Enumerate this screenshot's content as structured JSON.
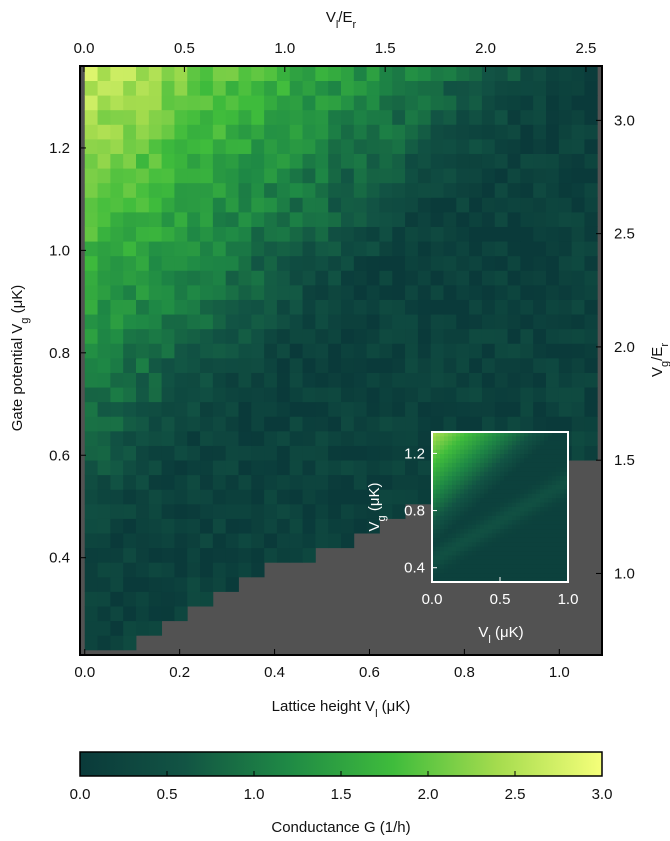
{
  "chart_data": {
    "type": "heatmap",
    "axes": {
      "bottom": {
        "label": "Lattice height V",
        "label_sub": "l",
        "label_unit": " (μK)",
        "range": [
          -0.01,
          1.09
        ],
        "ticks": [
          0.0,
          0.2,
          0.4,
          0.6,
          0.8,
          1.0
        ],
        "tick_labels": [
          "0.0",
          "0.2",
          "0.4",
          "0.6",
          "0.8",
          "1.0"
        ]
      },
      "left": {
        "label": "Gate potential V",
        "label_sub": "g",
        "label_unit": " (μK)",
        "range": [
          0.21,
          1.36
        ],
        "ticks": [
          0.4,
          0.6,
          0.8,
          1.0,
          1.2
        ],
        "tick_labels": [
          "0.4",
          "0.6",
          "0.8",
          "1.0",
          "1.2"
        ]
      },
      "top": {
        "label": "V",
        "label_sub": "l",
        "label_unit": "/E",
        "label_sub2": "r",
        "range": [
          -0.02,
          2.58
        ],
        "ticks": [
          0.0,
          0.5,
          1.0,
          1.5,
          2.0,
          2.5
        ],
        "tick_labels": [
          "0.0",
          "0.5",
          "1.0",
          "1.5",
          "2.0",
          "2.5"
        ]
      },
      "right": {
        "label": "V",
        "label_sub": "g",
        "label_unit": "/E",
        "label_sub2": "r",
        "range": [
          0.64,
          3.24
        ],
        "ticks": [
          1.0,
          1.5,
          2.0,
          2.5,
          3.0
        ],
        "tick_labels": [
          "1.0",
          "1.5",
          "2.0",
          "2.5",
          "3.0"
        ]
      }
    },
    "colorbar": {
      "label": "Conductance G (1/h)",
      "range": [
        0,
        3
      ],
      "ticks": [
        0.0,
        0.5,
        1.0,
        1.5,
        2.0,
        2.5,
        3.0
      ],
      "tick_labels": [
        "0.0",
        "0.5",
        "1.0",
        "1.5",
        "2.0",
        "2.5",
        "3.0"
      ],
      "colormap": [
        "#0a3a3a",
        "#125444",
        "#1f8a45",
        "#3fbc3c",
        "#a5dc4e",
        "#f5ff7a"
      ]
    },
    "grid": {
      "nx": 40,
      "ny": 40,
      "x_range": [
        0.0,
        1.08
      ],
      "y_range": [
        0.22,
        1.36
      ],
      "masked_boundary": [
        [
          0.06,
          0.22
        ],
        [
          0.14,
          0.25
        ],
        [
          0.24,
          0.3
        ],
        [
          0.34,
          0.36
        ],
        [
          0.46,
          0.4
        ],
        [
          0.58,
          0.44
        ],
        [
          0.7,
          0.5
        ],
        [
          0.86,
          0.53
        ],
        [
          1.0,
          0.58
        ],
        [
          1.08,
          0.6
        ]
      ],
      "mask_color": "#525252",
      "notes": "Cell values are estimated visually; high conductance near low lattice height and high gate potential, decreasing toward the diagonal boundary."
    },
    "inset": {
      "type": "heatmap",
      "xlabel": "V",
      "xlabel_sub": "l",
      "xlabel_unit": " (μK)",
      "xrange": [
        0.0,
        1.0
      ],
      "xticks": [
        0.0,
        0.5,
        1.0
      ],
      "xtick_labels": [
        "0.0",
        "0.5",
        "1.0"
      ],
      "ylabel": "V",
      "ylabel_sub": "g",
      "ylabel_unit": " (μK)",
      "yrange": [
        0.3,
        1.35
      ],
      "yticks": [
        0.4,
        0.8,
        1.2
      ],
      "ytick_labels": [
        "0.4",
        "0.8",
        "1.2"
      ],
      "border_color": "#ffffff"
    }
  }
}
